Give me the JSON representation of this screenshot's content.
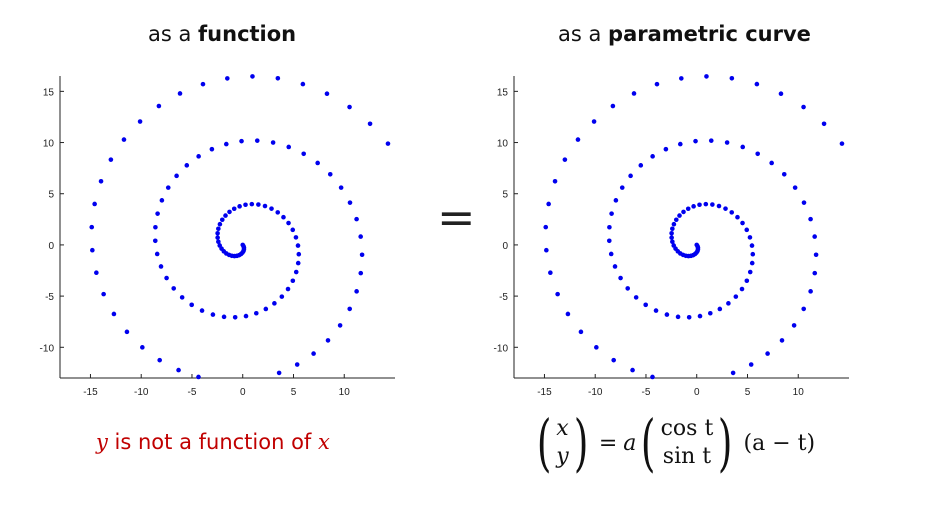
{
  "titles": {
    "left": {
      "prefix": "as a ",
      "bold": "function"
    },
    "right": {
      "prefix": "as a ",
      "bold": "parametric curve"
    }
  },
  "equals_sign": "=",
  "caption": {
    "y": "y",
    "middle": " is not a function of ",
    "x": "x"
  },
  "formula": {
    "lhs_top": "x",
    "lhs_bottom": "y",
    "eq": "=",
    "a": "a",
    "rhs_top": "cos t",
    "rhs_bottom": "sin t",
    "tail": "(a − t)"
  },
  "colors": {
    "points": "#0000ee",
    "caption": "#c00000",
    "axis": "#222222"
  },
  "chart_data": [
    {
      "type": "scatter",
      "title": "as a function",
      "xlabel": "",
      "ylabel": "",
      "xlim": [
        -18,
        15
      ],
      "ylim": [
        -13,
        16.5
      ],
      "xticks": [
        -15,
        -10,
        -5,
        0,
        5,
        10
      ],
      "yticks": [
        -10,
        -5,
        0,
        5,
        10,
        15
      ],
      "grid": false,
      "curve": {
        "a": 18.0,
        "t_start": 0,
        "t_end": 18.0,
        "n_points": 120,
        "x": "a*cos(t)*(a-t)/18",
        "y": "a*sin(t)*(a-t)/18"
      }
    },
    {
      "type": "scatter",
      "title": "as a parametric curve",
      "xlabel": "",
      "ylabel": "",
      "xlim": [
        -18,
        15
      ],
      "ylim": [
        -13,
        16.5
      ],
      "xticks": [
        -15,
        -10,
        -5,
        0,
        5,
        10
      ],
      "yticks": [
        -10,
        -5,
        0,
        5,
        10,
        15
      ],
      "grid": false,
      "curve": {
        "a": 18.0,
        "t_start": 0,
        "t_end": 18.0,
        "n_points": 120,
        "x": "a*cos(t)*(a-t)/18",
        "y": "a*sin(t)*(a-t)/18"
      }
    }
  ]
}
